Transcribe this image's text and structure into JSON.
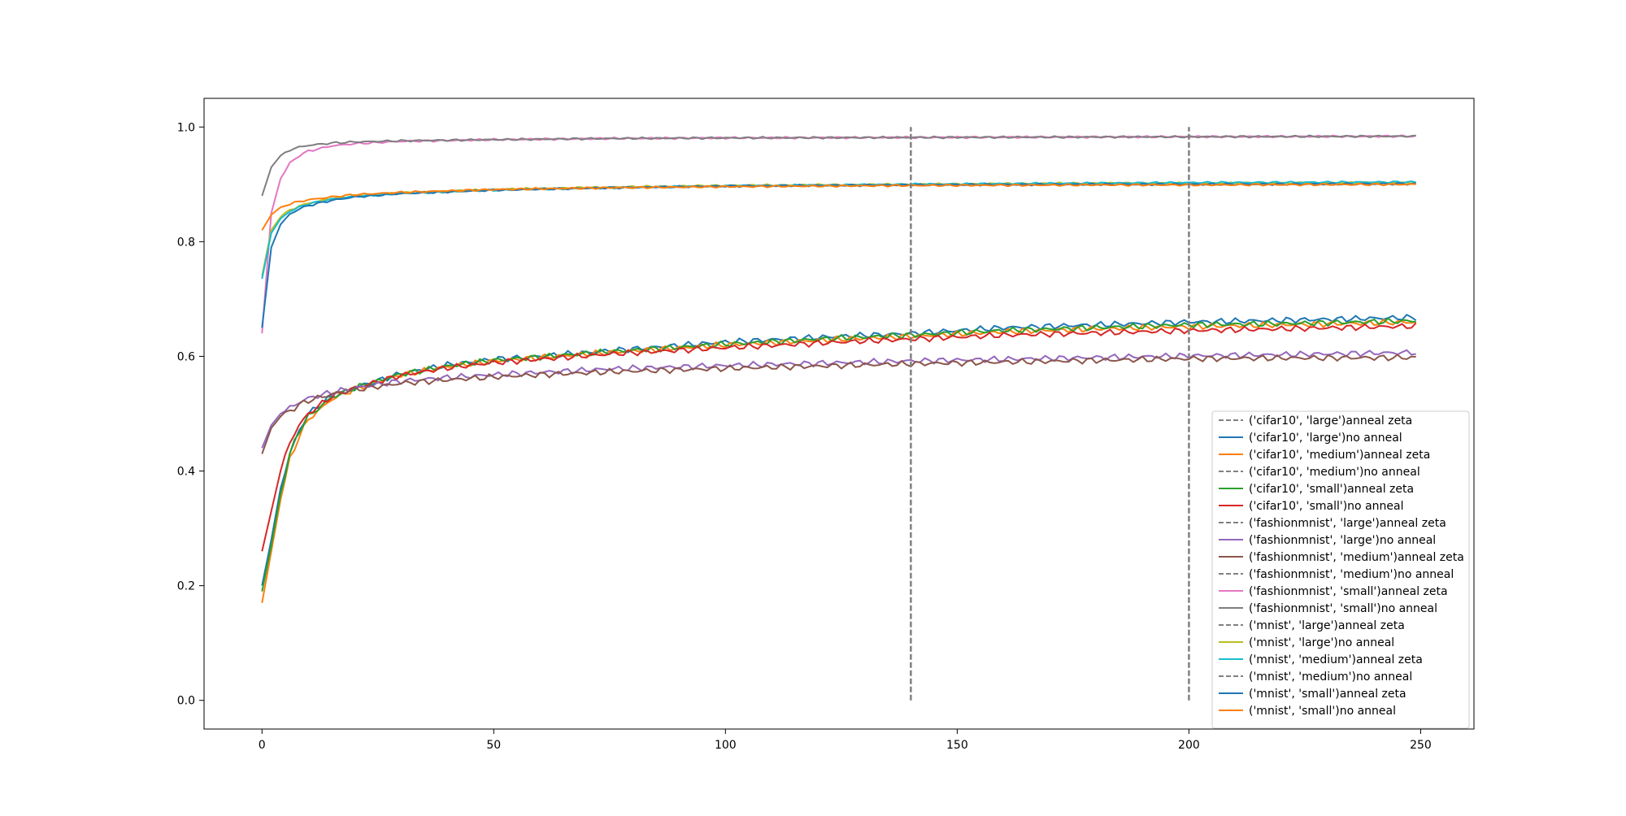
{
  "chart_data": {
    "type": "line",
    "title": "",
    "xlabel": "",
    "ylabel": "",
    "xlim": [
      -12.5,
      261.5
    ],
    "ylim": [
      -0.05,
      1.05
    ],
    "xticks": [
      0,
      50,
      100,
      150,
      200,
      250
    ],
    "yticks": [
      0.0,
      0.2,
      0.4,
      0.6,
      0.8,
      1.0
    ],
    "grid": false,
    "legend_position": "lower-right",
    "vlines": [
      {
        "x": 140,
        "y_range": [
          0.0,
          1.0
        ],
        "color": "#808080",
        "style": "dashed"
      },
      {
        "x": 200,
        "y_range": [
          0.0,
          1.0
        ],
        "color": "#808080",
        "style": "dashed"
      }
    ],
    "series": [
      {
        "name": "('cifar10', 'large')anneal zeta",
        "color": "#808080",
        "style": "dashed",
        "in_legend_only": true,
        "points": []
      },
      {
        "name": "('cifar10', 'large')no anneal",
        "color": "#1f77b4",
        "style": "solid",
        "points": [
          [
            0,
            0.2
          ],
          [
            2,
            0.28
          ],
          [
            4,
            0.37
          ],
          [
            6,
            0.43
          ],
          [
            8,
            0.47
          ],
          [
            10,
            0.5
          ],
          [
            15,
            0.53
          ],
          [
            20,
            0.545
          ],
          [
            30,
            0.57
          ],
          [
            40,
            0.585
          ],
          [
            50,
            0.595
          ],
          [
            60,
            0.6
          ],
          [
            75,
            0.61
          ],
          [
            100,
            0.625
          ],
          [
            125,
            0.635
          ],
          [
            140,
            0.64
          ],
          [
            160,
            0.65
          ],
          [
            180,
            0.655
          ],
          [
            200,
            0.66
          ],
          [
            220,
            0.663
          ],
          [
            250,
            0.668
          ]
        ]
      },
      {
        "name": "('cifar10', 'medium')anneal zeta",
        "color": "#ff7f0e",
        "style": "solid",
        "points": [
          [
            0,
            0.17
          ],
          [
            2,
            0.26
          ],
          [
            4,
            0.35
          ],
          [
            6,
            0.42
          ],
          [
            8,
            0.46
          ],
          [
            10,
            0.49
          ],
          [
            15,
            0.525
          ],
          [
            20,
            0.543
          ],
          [
            30,
            0.568
          ],
          [
            40,
            0.582
          ],
          [
            50,
            0.592
          ],
          [
            60,
            0.598
          ],
          [
            75,
            0.607
          ],
          [
            100,
            0.62
          ],
          [
            125,
            0.63
          ],
          [
            140,
            0.635
          ],
          [
            160,
            0.643
          ],
          [
            180,
            0.648
          ],
          [
            200,
            0.652
          ],
          [
            220,
            0.655
          ],
          [
            250,
            0.66
          ]
        ]
      },
      {
        "name": "('cifar10', 'medium')no anneal",
        "color": "#808080",
        "style": "dashed",
        "in_legend_only": true,
        "points": []
      },
      {
        "name": "('cifar10', 'small')anneal zeta",
        "color": "#2ca02c",
        "style": "solid",
        "points": [
          [
            0,
            0.19
          ],
          [
            2,
            0.27
          ],
          [
            4,
            0.36
          ],
          [
            6,
            0.43
          ],
          [
            8,
            0.47
          ],
          [
            10,
            0.495
          ],
          [
            15,
            0.528
          ],
          [
            20,
            0.545
          ],
          [
            30,
            0.569
          ],
          [
            40,
            0.583
          ],
          [
            50,
            0.593
          ],
          [
            60,
            0.599
          ],
          [
            75,
            0.608
          ],
          [
            100,
            0.621
          ],
          [
            125,
            0.632
          ],
          [
            140,
            0.637
          ],
          [
            160,
            0.645
          ],
          [
            180,
            0.65
          ],
          [
            200,
            0.655
          ],
          [
            220,
            0.657
          ],
          [
            250,
            0.662
          ]
        ]
      },
      {
        "name": "('cifar10', 'small')no anneal",
        "color": "#d62728",
        "style": "solid",
        "points": [
          [
            0,
            0.26
          ],
          [
            2,
            0.33
          ],
          [
            4,
            0.4
          ],
          [
            6,
            0.45
          ],
          [
            8,
            0.48
          ],
          [
            10,
            0.5
          ],
          [
            15,
            0.53
          ],
          [
            20,
            0.545
          ],
          [
            30,
            0.567
          ],
          [
            40,
            0.58
          ],
          [
            50,
            0.589
          ],
          [
            60,
            0.595
          ],
          [
            75,
            0.604
          ],
          [
            100,
            0.615
          ],
          [
            125,
            0.625
          ],
          [
            140,
            0.63
          ],
          [
            160,
            0.637
          ],
          [
            180,
            0.641
          ],
          [
            200,
            0.645
          ],
          [
            220,
            0.648
          ],
          [
            250,
            0.653
          ]
        ]
      },
      {
        "name": "('fashionmnist', 'large')anneal zeta",
        "color": "#808080",
        "style": "dashed",
        "in_legend_only": true,
        "points": []
      },
      {
        "name": "('fashionmnist', 'large')no anneal",
        "color": "#9467bd",
        "style": "solid",
        "points": [
          [
            0,
            0.44
          ],
          [
            2,
            0.48
          ],
          [
            4,
            0.5
          ],
          [
            6,
            0.51
          ],
          [
            8,
            0.52
          ],
          [
            10,
            0.527
          ],
          [
            15,
            0.537
          ],
          [
            20,
            0.545
          ],
          [
            30,
            0.557
          ],
          [
            40,
            0.563
          ],
          [
            50,
            0.568
          ],
          [
            60,
            0.572
          ],
          [
            75,
            0.578
          ],
          [
            100,
            0.584
          ],
          [
            125,
            0.589
          ],
          [
            140,
            0.592
          ],
          [
            160,
            0.595
          ],
          [
            180,
            0.598
          ],
          [
            200,
            0.601
          ],
          [
            220,
            0.603
          ],
          [
            250,
            0.607
          ]
        ]
      },
      {
        "name": "('fashionmnist', 'medium')anneal zeta",
        "color": "#8c564b",
        "style": "solid",
        "points": [
          [
            0,
            0.43
          ],
          [
            2,
            0.475
          ],
          [
            4,
            0.495
          ],
          [
            6,
            0.505
          ],
          [
            8,
            0.515
          ],
          [
            10,
            0.523
          ],
          [
            15,
            0.534
          ],
          [
            20,
            0.542
          ],
          [
            30,
            0.553
          ],
          [
            40,
            0.559
          ],
          [
            50,
            0.564
          ],
          [
            60,
            0.568
          ],
          [
            75,
            0.573
          ],
          [
            100,
            0.579
          ],
          [
            125,
            0.584
          ],
          [
            140,
            0.587
          ],
          [
            160,
            0.59
          ],
          [
            180,
            0.593
          ],
          [
            200,
            0.596
          ],
          [
            220,
            0.597
          ],
          [
            250,
            0.598
          ]
        ]
      },
      {
        "name": "('fashionmnist', 'medium')no anneal",
        "color": "#808080",
        "style": "dashed",
        "in_legend_only": true,
        "points": []
      },
      {
        "name": "('fashionmnist', 'small')anneal zeta",
        "color": "#e377c2",
        "style": "solid",
        "points": [
          [
            0,
            0.64
          ],
          [
            2,
            0.85
          ],
          [
            4,
            0.91
          ],
          [
            6,
            0.937
          ],
          [
            8,
            0.95
          ],
          [
            10,
            0.958
          ],
          [
            15,
            0.967
          ],
          [
            20,
            0.971
          ],
          [
            30,
            0.975
          ],
          [
            50,
            0.978
          ],
          [
            75,
            0.98
          ],
          [
            100,
            0.981
          ],
          [
            150,
            0.982
          ],
          [
            200,
            0.983
          ],
          [
            250,
            0.984
          ]
        ]
      },
      {
        "name": "('fashionmnist', 'small')no anneal",
        "color": "#7f7f7f",
        "style": "solid",
        "points": [
          [
            0,
            0.88
          ],
          [
            2,
            0.93
          ],
          [
            4,
            0.95
          ],
          [
            6,
            0.96
          ],
          [
            8,
            0.965
          ],
          [
            10,
            0.968
          ],
          [
            15,
            0.972
          ],
          [
            20,
            0.974
          ],
          [
            30,
            0.976
          ],
          [
            50,
            0.978
          ],
          [
            75,
            0.98
          ],
          [
            100,
            0.981
          ],
          [
            150,
            0.982
          ],
          [
            200,
            0.983
          ],
          [
            250,
            0.984
          ]
        ]
      },
      {
        "name": "('mnist', 'large')anneal zeta",
        "color": "#808080",
        "style": "dashed",
        "in_legend_only": true,
        "points": []
      },
      {
        "name": "('mnist', 'large')no anneal",
        "color": "#bcbd22",
        "style": "solid",
        "points": [
          [
            0,
            0.74
          ],
          [
            2,
            0.82
          ],
          [
            4,
            0.843
          ],
          [
            6,
            0.855
          ],
          [
            8,
            0.862
          ],
          [
            10,
            0.867
          ],
          [
            15,
            0.875
          ],
          [
            20,
            0.88
          ],
          [
            30,
            0.885
          ],
          [
            50,
            0.891
          ],
          [
            75,
            0.895
          ],
          [
            100,
            0.898
          ],
          [
            140,
            0.9
          ],
          [
            180,
            0.902
          ],
          [
            200,
            0.902
          ],
          [
            250,
            0.903
          ]
        ]
      },
      {
        "name": "('mnist', 'medium')anneal zeta",
        "color": "#17becf",
        "style": "solid",
        "points": [
          [
            0,
            0.735
          ],
          [
            2,
            0.815
          ],
          [
            4,
            0.84
          ],
          [
            6,
            0.853
          ],
          [
            8,
            0.86
          ],
          [
            10,
            0.866
          ],
          [
            15,
            0.874
          ],
          [
            20,
            0.879
          ],
          [
            30,
            0.884
          ],
          [
            50,
            0.89
          ],
          [
            75,
            0.894
          ],
          [
            100,
            0.897
          ],
          [
            140,
            0.9
          ],
          [
            180,
            0.902
          ],
          [
            200,
            0.903
          ],
          [
            250,
            0.904
          ]
        ]
      },
      {
        "name": "('mnist', 'medium')no anneal",
        "color": "#808080",
        "style": "dashed",
        "in_legend_only": true,
        "points": []
      },
      {
        "name": "('mnist', 'small')anneal zeta",
        "color": "#1f77b4",
        "style": "solid",
        "points": [
          [
            0,
            0.65
          ],
          [
            2,
            0.79
          ],
          [
            4,
            0.83
          ],
          [
            6,
            0.848
          ],
          [
            8,
            0.857
          ],
          [
            10,
            0.863
          ],
          [
            15,
            0.872
          ],
          [
            20,
            0.878
          ],
          [
            30,
            0.884
          ],
          [
            50,
            0.89
          ],
          [
            75,
            0.894
          ],
          [
            100,
            0.897
          ],
          [
            140,
            0.899
          ],
          [
            180,
            0.9
          ],
          [
            200,
            0.9
          ],
          [
            250,
            0.901
          ]
        ]
      },
      {
        "name": "('mnist', 'small')no anneal",
        "color": "#ff7f0e",
        "style": "solid",
        "points": [
          [
            0,
            0.82
          ],
          [
            2,
            0.847
          ],
          [
            4,
            0.86
          ],
          [
            6,
            0.866
          ],
          [
            8,
            0.87
          ],
          [
            10,
            0.873
          ],
          [
            15,
            0.878
          ],
          [
            20,
            0.882
          ],
          [
            30,
            0.886
          ],
          [
            50,
            0.891
          ],
          [
            75,
            0.894
          ],
          [
            100,
            0.896
          ],
          [
            140,
            0.898
          ],
          [
            180,
            0.899
          ],
          [
            200,
            0.899
          ],
          [
            250,
            0.9
          ]
        ]
      }
    ]
  }
}
